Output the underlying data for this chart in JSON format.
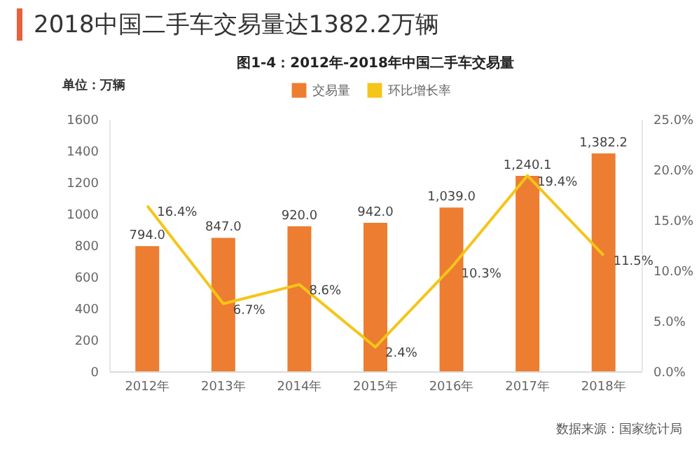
{
  "chart_data": {
    "type": "bar",
    "title": "2018中国二手车交易量达1382.2万辆",
    "subtitle": "图1-4：2012年-2018年中国二手车交易量",
    "ylabel": "单位：万辆",
    "categories": [
      "2012年",
      "2013年",
      "2014年",
      "2015年",
      "2016年",
      "2017年",
      "2018年"
    ],
    "series": [
      {
        "name": "交易量",
        "color": "#ed7d31",
        "values": [
          794.0,
          847.0,
          920.0,
          942.0,
          1039.0,
          1240.1,
          1382.2
        ],
        "value_labels": [
          "794.0",
          "847.0",
          "920.0",
          "942.0",
          "1,039.0",
          "1,240.1",
          "1,382.2"
        ]
      },
      {
        "name": "环比增长率",
        "type": "line",
        "axis": "y2",
        "color": "#f5c518",
        "values": [
          16.4,
          6.7,
          8.6,
          2.4,
          10.3,
          19.4,
          11.5
        ],
        "value_labels": [
          "16.4%",
          "6.7%",
          "8.6%",
          "2.4%",
          "10.3%",
          "19.4%",
          "11.5%"
        ]
      }
    ],
    "ylim": [
      0,
      1600
    ],
    "yticks": [
      0,
      200,
      400,
      600,
      800,
      1000,
      1200,
      1400,
      1600
    ],
    "y2lim": [
      0,
      25
    ],
    "y2ticks": [
      {
        "value": 0,
        "label": "0.0%"
      },
      {
        "value": 5,
        "label": "5.0%"
      },
      {
        "value": 10,
        "label": "10.0%"
      },
      {
        "value": 15,
        "label": "15.0%"
      },
      {
        "value": 20,
        "label": "20.0%"
      },
      {
        "value": 25,
        "label": "25.0%"
      }
    ],
    "legend": "top",
    "grid": false,
    "marker": "none",
    "annotations": [
      "数据来源：国家统计局"
    ]
  }
}
